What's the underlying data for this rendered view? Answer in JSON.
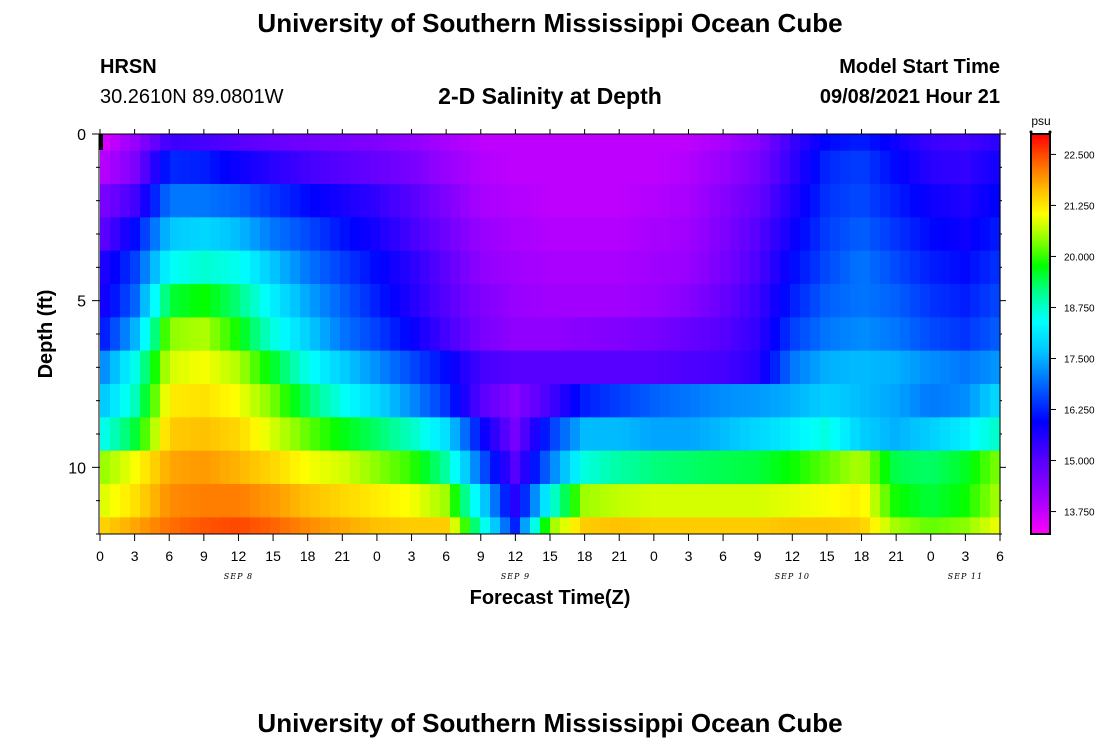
{
  "header": {
    "title": "University of Southern Mississippi Ocean Cube",
    "station": "HRSN",
    "coordinates": "30.2610N  89.0801W",
    "plot_title": "2-D Salinity at Depth",
    "model_start_label": "Model Start Time",
    "model_start_value": "09/08/2021 Hour 21"
  },
  "footer": {
    "title": "University of Southern Mississippi Ocean Cube"
  },
  "chart_data": {
    "type": "heatmap",
    "title": "2-D Salinity at Depth",
    "xlabel": "Forecast Time(Z)",
    "ylabel": "Depth (ft)",
    "colorbar_unit": "psu",
    "colorbar_ticks": [
      "22.500",
      "21.250",
      "20.000",
      "18.750",
      "17.500",
      "16.250",
      "15.000",
      "13.750"
    ],
    "colorbar_range": [
      13.2,
      23.0
    ],
    "x_hours_range": [
      0,
      78
    ],
    "x_tick_labels": [
      "0",
      "3",
      "6",
      "9",
      "12",
      "15",
      "18",
      "21",
      "0",
      "3",
      "6",
      "9",
      "12",
      "15",
      "18",
      "21",
      "0",
      "3",
      "6",
      "9",
      "12",
      "15",
      "18",
      "21",
      "0",
      "3",
      "6"
    ],
    "date_labels": [
      {
        "label": "SEP 8",
        "hour": 12
      },
      {
        "label": "SEP 9",
        "hour": 36
      },
      {
        "label": "SEP 10",
        "hour": 60
      },
      {
        "label": "SEP 11",
        "hour": 75
      }
    ],
    "y_range_ft": [
      0,
      12
    ],
    "y_tick_labels": [
      "0",
      "5",
      "10"
    ],
    "layer_depths_ft": [
      0,
      0.5,
      1.5,
      2.5,
      3.5,
      4.5,
      5.5,
      6.5,
      7.5,
      8.5,
      9.5,
      10.5,
      11.5
    ],
    "keyframe_hours": [
      0,
      3,
      6,
      9,
      12,
      15,
      18,
      21,
      24,
      27,
      30,
      33,
      36,
      39,
      42,
      45,
      48,
      51,
      54,
      57,
      60,
      63,
      66,
      69,
      72,
      75,
      78
    ],
    "salinity_layers": [
      [
        13.5,
        14.2,
        15.3,
        15.2,
        15.0,
        14.8,
        14.7,
        14.6,
        14.5,
        14.3,
        14.0,
        13.8,
        13.8,
        13.8,
        13.8,
        13.8,
        13.8,
        13.8,
        14.0,
        14.4,
        15.3,
        16.0,
        16.2,
        15.8,
        15.3,
        15.2,
        15.5
      ],
      [
        13.8,
        14.5,
        16.3,
        16.2,
        15.8,
        15.5,
        15.2,
        15.0,
        14.8,
        14.6,
        14.2,
        13.9,
        13.8,
        13.8,
        13.8,
        13.8,
        13.8,
        13.9,
        14.2,
        14.6,
        15.4,
        16.3,
        16.5,
        16.0,
        15.5,
        15.4,
        15.8
      ],
      [
        14.5,
        15.2,
        17.0,
        17.0,
        16.8,
        16.4,
        16.0,
        15.7,
        15.4,
        15.0,
        14.5,
        14.0,
        13.9,
        13.8,
        13.8,
        13.8,
        13.9,
        14.0,
        14.4,
        14.8,
        15.6,
        16.4,
        16.6,
        16.2,
        15.8,
        15.6,
        16.0
      ],
      [
        14.8,
        16.0,
        17.7,
        17.9,
        17.6,
        17.0,
        16.6,
        16.1,
        15.7,
        15.2,
        14.7,
        14.2,
        14.0,
        13.9,
        13.9,
        13.9,
        14.0,
        14.1,
        14.5,
        15.0,
        15.8,
        16.5,
        16.8,
        16.4,
        16.0,
        15.8,
        16.2
      ],
      [
        15.5,
        16.5,
        18.4,
        18.7,
        18.5,
        17.7,
        17.0,
        16.5,
        16.0,
        15.5,
        14.9,
        14.3,
        14.1,
        14.0,
        14.0,
        14.0,
        14.1,
        14.2,
        14.6,
        15.1,
        16.0,
        16.6,
        17.0,
        16.6,
        16.2,
        16.0,
        16.4
      ],
      [
        15.6,
        16.8,
        19.5,
        19.8,
        19.2,
        18.2,
        17.4,
        16.8,
        16.2,
        15.6,
        15.0,
        14.5,
        14.2,
        14.1,
        14.1,
        14.1,
        14.2,
        14.4,
        14.8,
        15.3,
        16.2,
        16.8,
        17.0,
        16.8,
        16.4,
        16.2,
        16.6
      ],
      [
        16.0,
        17.5,
        20.4,
        20.6,
        19.8,
        18.6,
        17.8,
        17.0,
        16.5,
        15.9,
        15.2,
        14.6,
        14.3,
        14.3,
        14.4,
        14.5,
        14.6,
        14.8,
        15.0,
        15.4,
        16.5,
        17.0,
        17.2,
        17.0,
        16.6,
        16.4,
        16.8
      ],
      [
        17.0,
        18.5,
        20.8,
        21.0,
        20.6,
        19.6,
        18.5,
        17.8,
        17.2,
        16.6,
        16.0,
        15.2,
        15.0,
        15.0,
        15.0,
        15.0,
        15.0,
        15.1,
        15.2,
        15.5,
        17.0,
        17.5,
        17.6,
        17.5,
        17.2,
        17.0,
        17.3
      ],
      [
        17.6,
        18.8,
        21.2,
        21.3,
        21.0,
        20.3,
        19.3,
        18.5,
        17.9,
        17.2,
        16.4,
        15.0,
        14.4,
        15.2,
        16.2,
        16.5,
        16.8,
        17.0,
        17.2,
        17.3,
        17.5,
        17.8,
        17.6,
        17.4,
        17.0,
        17.2,
        18.0
      ],
      [
        18.4,
        19.5,
        21.5,
        21.6,
        21.4,
        20.8,
        20.2,
        19.7,
        19.3,
        18.8,
        18.0,
        16.0,
        14.6,
        16.4,
        17.6,
        17.6,
        17.4,
        17.4,
        17.6,
        17.9,
        18.2,
        18.6,
        17.8,
        17.5,
        17.8,
        18.2,
        18.8
      ],
      [
        20.4,
        21.0,
        21.8,
        21.9,
        21.7,
        21.4,
        21.0,
        20.8,
        20.4,
        20.0,
        19.0,
        16.8,
        15.0,
        17.0,
        18.6,
        19.0,
        19.2,
        19.3,
        19.4,
        19.5,
        19.8,
        20.2,
        20.6,
        19.4,
        19.3,
        19.6,
        20.4
      ],
      [
        20.8,
        21.3,
        22.0,
        22.1,
        22.1,
        21.9,
        21.6,
        21.4,
        21.2,
        21.0,
        20.5,
        18.0,
        15.5,
        18.5,
        20.5,
        20.7,
        20.8,
        20.8,
        20.8,
        20.8,
        20.9,
        21.0,
        21.2,
        19.8,
        19.5,
        19.8,
        20.6
      ],
      [
        21.4,
        21.8,
        22.2,
        22.4,
        22.5,
        22.3,
        22.0,
        21.8,
        21.6,
        21.5,
        21.5,
        18.8,
        16.2,
        20.4,
        21.5,
        21.6,
        21.5,
        21.5,
        21.5,
        21.5,
        21.6,
        21.6,
        21.5,
        20.5,
        20.2,
        20.4,
        21.0
      ]
    ]
  }
}
